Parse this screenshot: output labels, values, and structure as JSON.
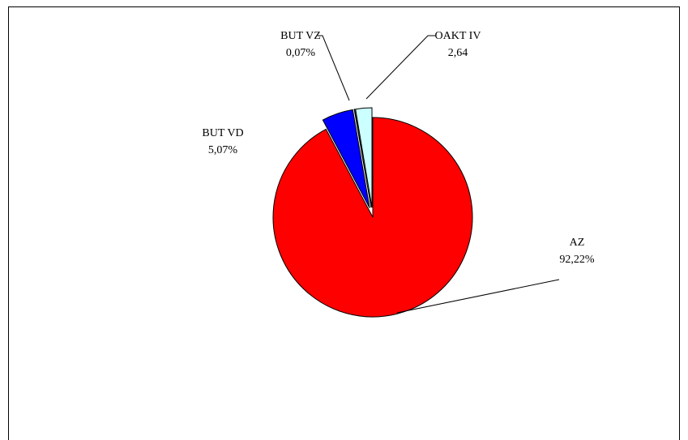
{
  "chart_data": {
    "type": "pie",
    "categories": [
      "AZ",
      "BUT VD",
      "BUT VZ",
      "OAKT IV"
    ],
    "values": [
      92.22,
      5.07,
      0.07,
      2.64
    ],
    "value_labels": [
      "92,22%",
      "5,07%",
      "0,07%",
      "2,64"
    ],
    "colors": [
      "#ff0000",
      "#0000ff",
      "#000080",
      "#ccffff"
    ]
  }
}
